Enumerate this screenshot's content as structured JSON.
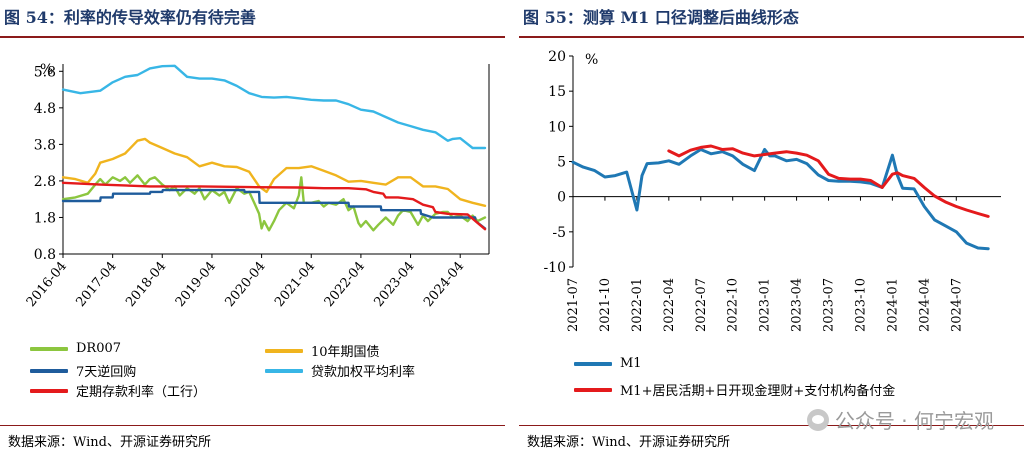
{
  "left": {
    "title": "图 54：利率的传导效率仍有待完善",
    "source": "数据来源：Wind、开源证券研究所",
    "chart_data": {
      "type": "line",
      "ylabel": "%",
      "ylim": [
        0.8,
        6.0
      ],
      "yticks": [
        "0.8",
        "1.8",
        "2.8",
        "3.8",
        "4.8",
        "5.8"
      ],
      "xticks": [
        "2016-04",
        "2017-04",
        "2018-04",
        "2019-04",
        "2020-04",
        "2021-04",
        "2022-04",
        "2023-04",
        "2024-04"
      ],
      "x_range": [
        2016.25,
        2024.83
      ],
      "series": [
        {
          "name": "贷款加权平均利率",
          "color": "#38b6e6",
          "x": [
            2016.25,
            2016.6,
            2017.0,
            2017.25,
            2017.5,
            2017.75,
            2018.0,
            2018.25,
            2018.5,
            2018.75,
            2019.0,
            2019.25,
            2019.5,
            2019.75,
            2020.0,
            2020.25,
            2020.5,
            2020.75,
            2021.0,
            2021.25,
            2021.5,
            2021.75,
            2022.0,
            2022.25,
            2022.5,
            2022.75,
            2023.0,
            2023.25,
            2023.5,
            2023.75,
            2024.0,
            2024.1,
            2024.25,
            2024.5,
            2024.75
          ],
          "y": [
            5.3,
            5.2,
            5.27,
            5.5,
            5.65,
            5.7,
            5.88,
            5.94,
            5.95,
            5.65,
            5.6,
            5.6,
            5.55,
            5.4,
            5.2,
            5.1,
            5.08,
            5.1,
            5.06,
            5.02,
            5.0,
            5.0,
            4.9,
            4.75,
            4.7,
            4.55,
            4.4,
            4.3,
            4.2,
            4.13,
            3.9,
            3.95,
            3.97,
            3.7,
            3.7
          ]
        },
        {
          "name": "10年期国债",
          "color": "#f0b41e",
          "x": [
            2016.25,
            2016.5,
            2016.75,
            2016.9,
            2017.0,
            2017.25,
            2017.5,
            2017.75,
            2017.9,
            2018.0,
            2018.25,
            2018.5,
            2018.75,
            2019.0,
            2019.25,
            2019.5,
            2019.75,
            2020.0,
            2020.2,
            2020.35,
            2020.5,
            2020.75,
            2021.0,
            2021.25,
            2021.5,
            2021.75,
            2022.0,
            2022.25,
            2022.5,
            2022.75,
            2023.0,
            2023.25,
            2023.5,
            2023.75,
            2024.0,
            2024.25,
            2024.5,
            2024.75
          ],
          "y": [
            2.9,
            2.85,
            2.75,
            3.0,
            3.3,
            3.4,
            3.55,
            3.9,
            3.95,
            3.85,
            3.7,
            3.55,
            3.45,
            3.2,
            3.3,
            3.2,
            3.18,
            3.05,
            2.65,
            2.5,
            2.85,
            3.15,
            3.15,
            3.2,
            3.08,
            2.95,
            2.78,
            2.8,
            2.75,
            2.7,
            2.9,
            2.9,
            2.65,
            2.65,
            2.58,
            2.3,
            2.2,
            2.12
          ]
        },
        {
          "name": "DR007",
          "color": "#8cc63f",
          "x": [
            2016.25,
            2016.5,
            2016.75,
            2016.9,
            2017.0,
            2017.1,
            2017.25,
            2017.4,
            2017.5,
            2017.6,
            2017.75,
            2017.9,
            2018.0,
            2018.1,
            2018.25,
            2018.4,
            2018.5,
            2018.6,
            2018.75,
            2018.9,
            2019.0,
            2019.1,
            2019.25,
            2019.4,
            2019.5,
            2019.6,
            2019.75,
            2019.9,
            2020.0,
            2020.1,
            2020.2,
            2020.25,
            2020.3,
            2020.4,
            2020.5,
            2020.6,
            2020.75,
            2020.9,
            2021.0,
            2021.05,
            2021.1,
            2021.25,
            2021.4,
            2021.5,
            2021.6,
            2021.75,
            2021.9,
            2022.0,
            2022.1,
            2022.2,
            2022.25,
            2022.35,
            2022.5,
            2022.6,
            2022.75,
            2022.9,
            2023.0,
            2023.1,
            2023.25,
            2023.4,
            2023.5,
            2023.6,
            2023.75,
            2023.9,
            2024.0,
            2024.1,
            2024.25,
            2024.4,
            2024.5,
            2024.6,
            2024.75
          ],
          "y": [
            2.3,
            2.35,
            2.45,
            2.7,
            2.85,
            2.7,
            2.9,
            2.8,
            2.9,
            2.75,
            2.95,
            2.7,
            2.85,
            2.9,
            2.7,
            2.55,
            2.65,
            2.4,
            2.6,
            2.45,
            2.6,
            2.3,
            2.55,
            2.4,
            2.5,
            2.2,
            2.6,
            2.45,
            2.5,
            2.2,
            1.9,
            1.5,
            1.7,
            1.45,
            1.7,
            2.0,
            2.2,
            2.05,
            2.4,
            2.9,
            2.2,
            2.2,
            2.25,
            2.1,
            2.2,
            2.15,
            2.3,
            2.0,
            2.1,
            1.65,
            1.55,
            1.7,
            1.45,
            1.6,
            1.8,
            1.6,
            1.85,
            2.0,
            1.95,
            1.6,
            1.85,
            1.7,
            1.9,
            1.95,
            1.95,
            1.8,
            1.85,
            1.7,
            1.85,
            1.7,
            1.8
          ]
        },
        {
          "name": "7天逆回购",
          "color": "#1f5c9c",
          "x": [
            2016.25,
            2017.0,
            2017.01,
            2017.25,
            2017.26,
            2018.0,
            2018.01,
            2018.25,
            2018.26,
            2019.9,
            2019.91,
            2020.2,
            2020.21,
            2020.5,
            2022.0,
            2022.01,
            2022.65,
            2022.66,
            2023.45,
            2023.46,
            2023.7,
            2024.55,
            2024.56,
            2024.75
          ],
          "y": [
            2.25,
            2.25,
            2.35,
            2.35,
            2.45,
            2.45,
            2.5,
            2.5,
            2.55,
            2.55,
            2.5,
            2.5,
            2.2,
            2.2,
            2.2,
            2.1,
            2.1,
            2.0,
            2.0,
            1.9,
            1.8,
            1.8,
            1.7,
            1.5
          ]
        },
        {
          "name": "定期存款利率（工行）",
          "color": "#e41a1c",
          "x": [
            2016.25,
            2017.0,
            2018.0,
            2019.0,
            2020.0,
            2021.0,
            2021.5,
            2022.0,
            2022.35,
            2022.5,
            2022.7,
            2022.75,
            2023.0,
            2023.3,
            2023.5,
            2023.7,
            2023.75,
            2024.0,
            2024.4,
            2024.6,
            2024.75
          ],
          "y": [
            2.75,
            2.7,
            2.65,
            2.65,
            2.63,
            2.62,
            2.6,
            2.6,
            2.57,
            2.5,
            2.45,
            2.35,
            2.35,
            2.3,
            2.15,
            2.08,
            1.95,
            1.9,
            1.88,
            1.65,
            1.48
          ]
        }
      ]
    },
    "legend": [
      "DR007",
      "10年期国债",
      "7天逆回购",
      "贷款加权平均利率",
      "定期存款利率（工行）"
    ]
  },
  "right": {
    "title": "图 55：测算 M1 口径调整后曲线形态",
    "source": "数据来源：Wind、开源证券研究所",
    "chart_data": {
      "type": "line",
      "ylabel": "%",
      "ylim": [
        -10,
        20
      ],
      "yticks": [
        "20",
        "15",
        "10",
        "5",
        "0",
        "-5",
        "-10"
      ],
      "xticks": [
        "2021-07",
        "2021-10",
        "2022-01",
        "2022-04",
        "2022-07",
        "2022-10",
        "2023-01",
        "2023-04",
        "2023-07",
        "2023-10",
        "2024-01",
        "2024-04",
        "2024-07"
      ],
      "x_range": [
        2021.5,
        2024.85
      ],
      "series": [
        {
          "name": "M1",
          "color": "#1f78b4",
          "x": [
            2021.5,
            2021.58,
            2021.67,
            2021.75,
            2021.83,
            2021.92,
            2022.0,
            2022.04,
            2022.08,
            2022.17,
            2022.25,
            2022.33,
            2022.42,
            2022.5,
            2022.58,
            2022.67,
            2022.75,
            2022.83,
            2022.92,
            2023.0,
            2023.04,
            2023.08,
            2023.17,
            2023.25,
            2023.33,
            2023.42,
            2023.5,
            2023.58,
            2023.67,
            2023.75,
            2023.83,
            2023.92,
            2024.0,
            2024.04,
            2024.08,
            2024.17,
            2024.25,
            2024.33,
            2024.42,
            2024.5,
            2024.58,
            2024.67,
            2024.75
          ],
          "y": [
            4.9,
            4.2,
            3.7,
            2.8,
            3.0,
            3.5,
            -1.9,
            3.0,
            4.7,
            4.8,
            5.1,
            4.6,
            5.8,
            6.7,
            6.1,
            6.4,
            5.8,
            4.6,
            3.7,
            6.7,
            5.8,
            5.8,
            5.1,
            5.3,
            4.7,
            3.1,
            2.3,
            2.2,
            2.2,
            2.1,
            1.9,
            1.3,
            5.9,
            3.0,
            1.2,
            1.1,
            -1.4,
            -3.3,
            -4.2,
            -5.0,
            -6.6,
            -7.3,
            -7.4
          ]
        },
        {
          "name": "M1+居民活期+日开现金理财+支付机构备付金",
          "color": "#e41a1c",
          "x": [
            2022.25,
            2022.33,
            2022.42,
            2022.5,
            2022.58,
            2022.67,
            2022.75,
            2022.83,
            2022.92,
            2023.0,
            2023.08,
            2023.17,
            2023.25,
            2023.33,
            2023.42,
            2023.5,
            2023.58,
            2023.67,
            2023.75,
            2023.83,
            2023.92,
            2024.0,
            2024.04,
            2024.08,
            2024.17,
            2024.25,
            2024.33,
            2024.42,
            2024.5,
            2024.58,
            2024.67,
            2024.75
          ],
          "y": [
            6.5,
            5.8,
            6.6,
            7.0,
            7.2,
            6.7,
            6.8,
            6.2,
            5.8,
            6.0,
            6.2,
            6.4,
            6.2,
            5.9,
            5.1,
            3.2,
            2.6,
            2.5,
            2.5,
            2.3,
            1.3,
            3.2,
            3.4,
            3.0,
            2.6,
            1.3,
            0.1,
            -0.8,
            -1.4,
            -1.9,
            -2.4,
            -2.8
          ]
        }
      ]
    },
    "legend": [
      "M1",
      "M1+居民活期+日开现金理财+支付机构备付金"
    ]
  },
  "watermark": "公众号 · 何宁宏观"
}
